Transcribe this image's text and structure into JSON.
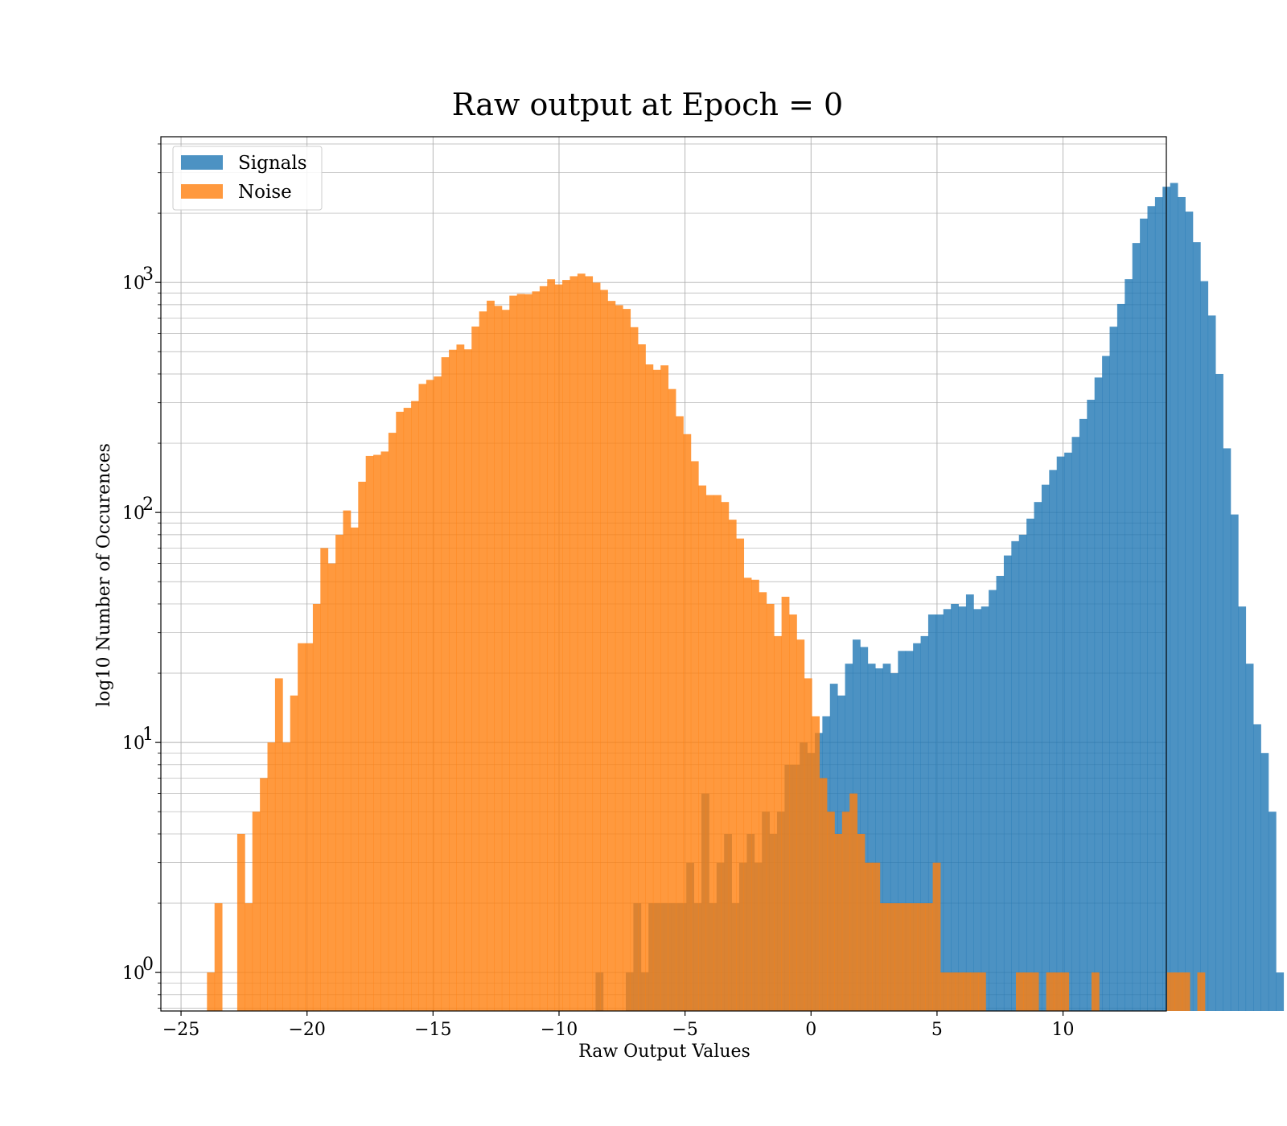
{
  "chart_data": {
    "type": "histogram",
    "title": "Raw output at Epoch = 0",
    "xlabel": "Raw Output Values",
    "ylabel": "log10 Number of Occurences",
    "xlim": [
      -25.8,
      14.1
    ],
    "ylim": [
      0.68,
      4300
    ],
    "yscale": "log",
    "grid": true,
    "legend_position": "upper-left",
    "x_ticks": [
      -25,
      -20,
      -15,
      -10,
      -5,
      0,
      5,
      10
    ],
    "x_tick_labels": [
      "−25",
      "−20",
      "−15",
      "−10",
      "−5",
      "0",
      "5",
      "10"
    ],
    "y_ticks": [
      1,
      10,
      100,
      1000
    ],
    "y_tick_labels": [
      {
        "base": "10",
        "exp": "0"
      },
      {
        "base": "10",
        "exp": "1"
      },
      {
        "base": "10",
        "exp": "2"
      },
      {
        "base": "10",
        "exp": "3"
      }
    ],
    "series": [
      {
        "name": "Signals",
        "color": "#1f77b4",
        "bin_start": -8.55,
        "bin_width": 0.3,
        "counts": [
          1,
          0,
          0,
          0,
          1,
          2,
          1,
          2,
          2,
          2,
          2,
          2,
          3,
          2,
          6,
          2,
          3,
          4,
          2,
          3,
          4,
          3,
          5,
          4,
          5,
          8,
          8,
          10,
          9,
          11,
          13,
          18,
          16,
          22,
          28,
          26,
          22,
          21,
          22,
          20,
          25,
          25,
          27,
          29,
          36,
          36,
          38,
          40,
          39,
          44,
          38,
          39,
          46,
          53,
          65,
          75,
          80,
          94,
          111,
          132,
          153,
          175,
          182,
          213,
          255,
          309,
          386,
          479,
          642,
          806,
          1033,
          1484,
          1895,
          2147,
          2349,
          2606,
          2707,
          2351,
          2032,
          1496,
          1013,
          718,
          400,
          190,
          98,
          39,
          22,
          12,
          9,
          5,
          1
        ]
      },
      {
        "name": "Noise",
        "color": "#ff7f0e",
        "bin_start": -23.97,
        "bin_width": 0.3,
        "counts": [
          1,
          2,
          0,
          0,
          4,
          2,
          5,
          7,
          10,
          19,
          10,
          16,
          27,
          27,
          40,
          70,
          60,
          80,
          102,
          86,
          136,
          176,
          178,
          184,
          222,
          274,
          285,
          305,
          362,
          377,
          390,
          473,
          510,
          537,
          512,
          643,
          748,
          833,
          791,
          760,
          876,
          891,
          889,
          914,
          963,
          1032,
          980,
          1025,
          1064,
          1092,
          1064,
          998,
          928,
          831,
          796,
          767,
          639,
          538,
          440,
          417,
          436,
          344,
          262,
          219,
          167,
          131,
          119,
          119,
          111,
          93,
          77,
          52,
          51,
          45,
          40,
          29,
          43,
          36,
          28,
          19,
          13,
          7,
          5,
          4,
          5,
          6,
          4,
          3,
          3,
          2,
          2,
          2,
          2,
          2,
          2,
          2,
          3,
          1,
          1,
          1,
          1,
          1,
          1,
          0,
          0,
          0,
          0,
          1,
          1,
          1,
          0,
          1,
          1,
          1,
          0,
          0,
          0,
          1,
          0,
          0,
          0,
          0,
          0,
          0,
          0,
          0,
          0,
          1,
          1,
          1,
          0,
          1,
          0,
          0,
          0,
          0,
          0,
          0,
          0
        ]
      }
    ]
  }
}
